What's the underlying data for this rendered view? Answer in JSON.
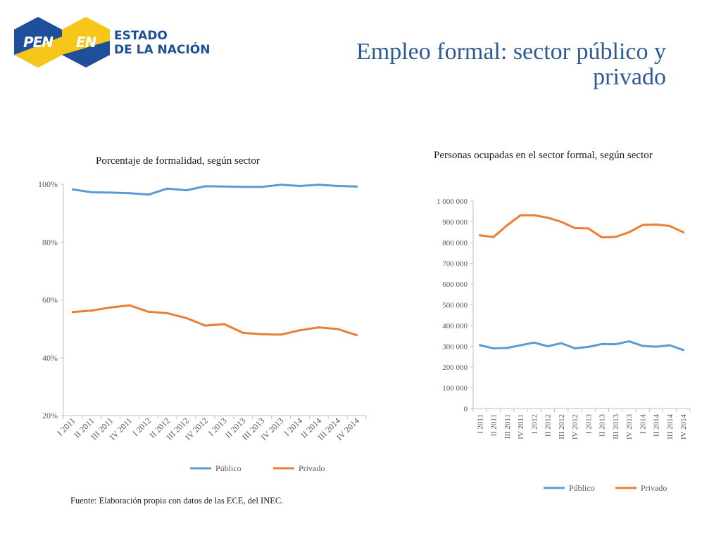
{
  "logo": {
    "pen_text": "PEN",
    "en_text": "EN",
    "line1": "ESTADO",
    "line2": "DE LA NACIÓN",
    "colors": {
      "blue": "#1f4e9a",
      "yellow": "#f6c71a"
    }
  },
  "slide": {
    "title": "Empleo formal: sector público y privado"
  },
  "colors": {
    "publico": "#5b9bd5",
    "privado": "#ed7d31",
    "axis": "#bfbfbf",
    "tick_text": "#595959"
  },
  "source_note": "Fuente: Elaboración propia con datos de las ECE, del INEC.",
  "chart_data": [
    {
      "type": "line",
      "title": "Porcentaje de formalidad, según sector",
      "categories": [
        "I 2011",
        "II 2011",
        "III 2011",
        "IV 2011",
        "I 2012",
        "II 2012",
        "III 2012",
        "IV 2012",
        "I 2013",
        "II 2013",
        "III 2013",
        "IV 2013",
        "I 2014",
        "II 2014",
        "III 2014",
        "IV 2014"
      ],
      "series": [
        {
          "name": "Público",
          "color": "#5b9bd5",
          "values": [
            98.2,
            97.2,
            97.1,
            96.9,
            96.4,
            98.5,
            97.9,
            99.3,
            99.2,
            99.1,
            99.1,
            99.8,
            99.4,
            99.8,
            99.4,
            99.2
          ]
        },
        {
          "name": "Privado",
          "color": "#ed7d31",
          "values": [
            55.8,
            56.3,
            57.4,
            58.1,
            55.9,
            55.4,
            53.7,
            51.1,
            51.6,
            48.6,
            48.1,
            48.0,
            49.5,
            50.5,
            49.9,
            47.8
          ]
        }
      ],
      "yticks": [
        "20%",
        "40%",
        "60%",
        "80%",
        "100%"
      ],
      "ylim": [
        20,
        100
      ],
      "grid": false,
      "legend": "bottom"
    },
    {
      "type": "line",
      "title": "Personas ocupadas en el sector formal, según sector",
      "categories": [
        "I 2011",
        "II 2011",
        "III 2011",
        "IV 2011",
        "I 2012",
        "II 2012",
        "III 2012",
        "IV 2012",
        "I 2013",
        "II 2013",
        "III 2013",
        "IV 2013",
        "I 2014",
        "II 2014",
        "III 2014",
        "IV 2014"
      ],
      "series": [
        {
          "name": "Público",
          "color": "#5b9bd5",
          "values": [
            305000,
            290000,
            292000,
            305000,
            318000,
            300000,
            315000,
            290000,
            297000,
            311000,
            310000,
            324000,
            302000,
            298000,
            305000,
            282000
          ]
        },
        {
          "name": "Privado",
          "color": "#ed7d31",
          "values": [
            835000,
            827000,
            883000,
            932000,
            932000,
            920000,
            900000,
            870000,
            868000,
            825000,
            827000,
            850000,
            885000,
            887000,
            880000,
            850000
          ]
        }
      ],
      "yticks": [
        "0",
        "100 000",
        "200 000",
        "300 000",
        "400 000",
        "500 000",
        "600 000",
        "700 000",
        "800 000",
        "900 000",
        "1 000 000"
      ],
      "ylim": [
        0,
        1000000
      ],
      "grid": false,
      "legend": "bottom"
    }
  ]
}
